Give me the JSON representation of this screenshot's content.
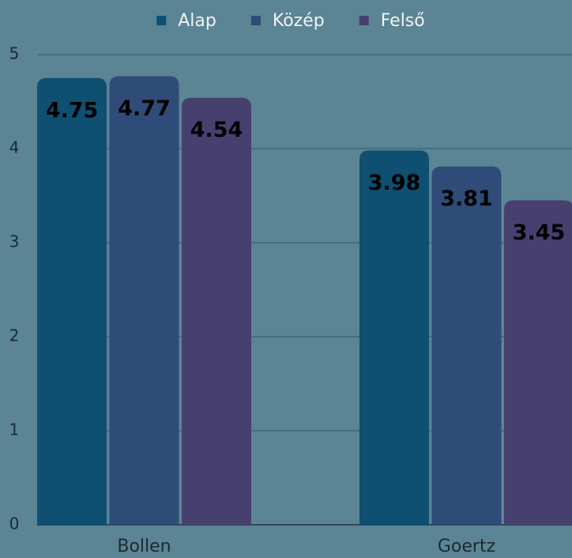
{
  "chart_data": {
    "type": "bar",
    "categories": [
      "Bollen",
      "Goertz"
    ],
    "series": [
      {
        "name": "Alap",
        "color": "#0e4f72",
        "values": [
          4.75,
          3.98
        ]
      },
      {
        "name": "Közép",
        "color": "#2f4b78",
        "values": [
          4.77,
          3.81
        ]
      },
      {
        "name": "Felső",
        "color": "#47406f",
        "values": [
          4.54,
          3.45
        ]
      }
    ],
    "ylim": [
      0,
      5
    ],
    "yticks": [
      0,
      1,
      2,
      3,
      4,
      5
    ],
    "grid": true,
    "legend": "top"
  }
}
